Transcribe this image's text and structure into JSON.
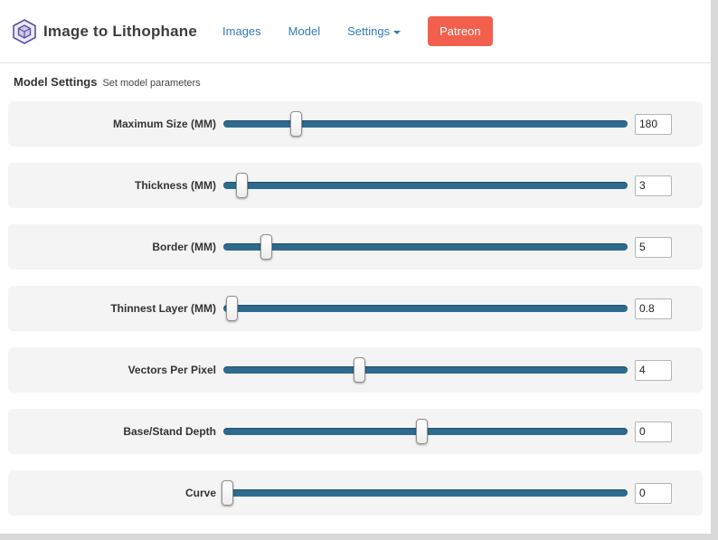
{
  "navbar": {
    "title": "Image to Lithophane",
    "links": [
      {
        "label": "Images"
      },
      {
        "label": "Model"
      },
      {
        "label": "Settings",
        "has_caret": true
      }
    ],
    "patreon_label": "Patreon"
  },
  "section": {
    "title": "Model Settings",
    "subtitle": "Set model parameters"
  },
  "sliders": [
    {
      "label": "Maximum Size (MM)",
      "value": "180",
      "percent": 18
    },
    {
      "label": "Thickness (MM)",
      "value": "3",
      "percent": 4.5
    },
    {
      "label": "Border (MM)",
      "value": "5",
      "percent": 10.5
    },
    {
      "label": "Thinnest Layer (MM)",
      "value": "0.8",
      "percent": 2
    },
    {
      "label": "Vectors Per Pixel",
      "value": "4",
      "percent": 33.5
    },
    {
      "label": "Base/Stand Depth",
      "value": "0",
      "percent": 49
    },
    {
      "label": "Curve",
      "value": "0",
      "percent": 1
    }
  ],
  "colors": {
    "link": "#337ab7",
    "patreon": "#f2604d",
    "track": "#2e6b8f"
  }
}
